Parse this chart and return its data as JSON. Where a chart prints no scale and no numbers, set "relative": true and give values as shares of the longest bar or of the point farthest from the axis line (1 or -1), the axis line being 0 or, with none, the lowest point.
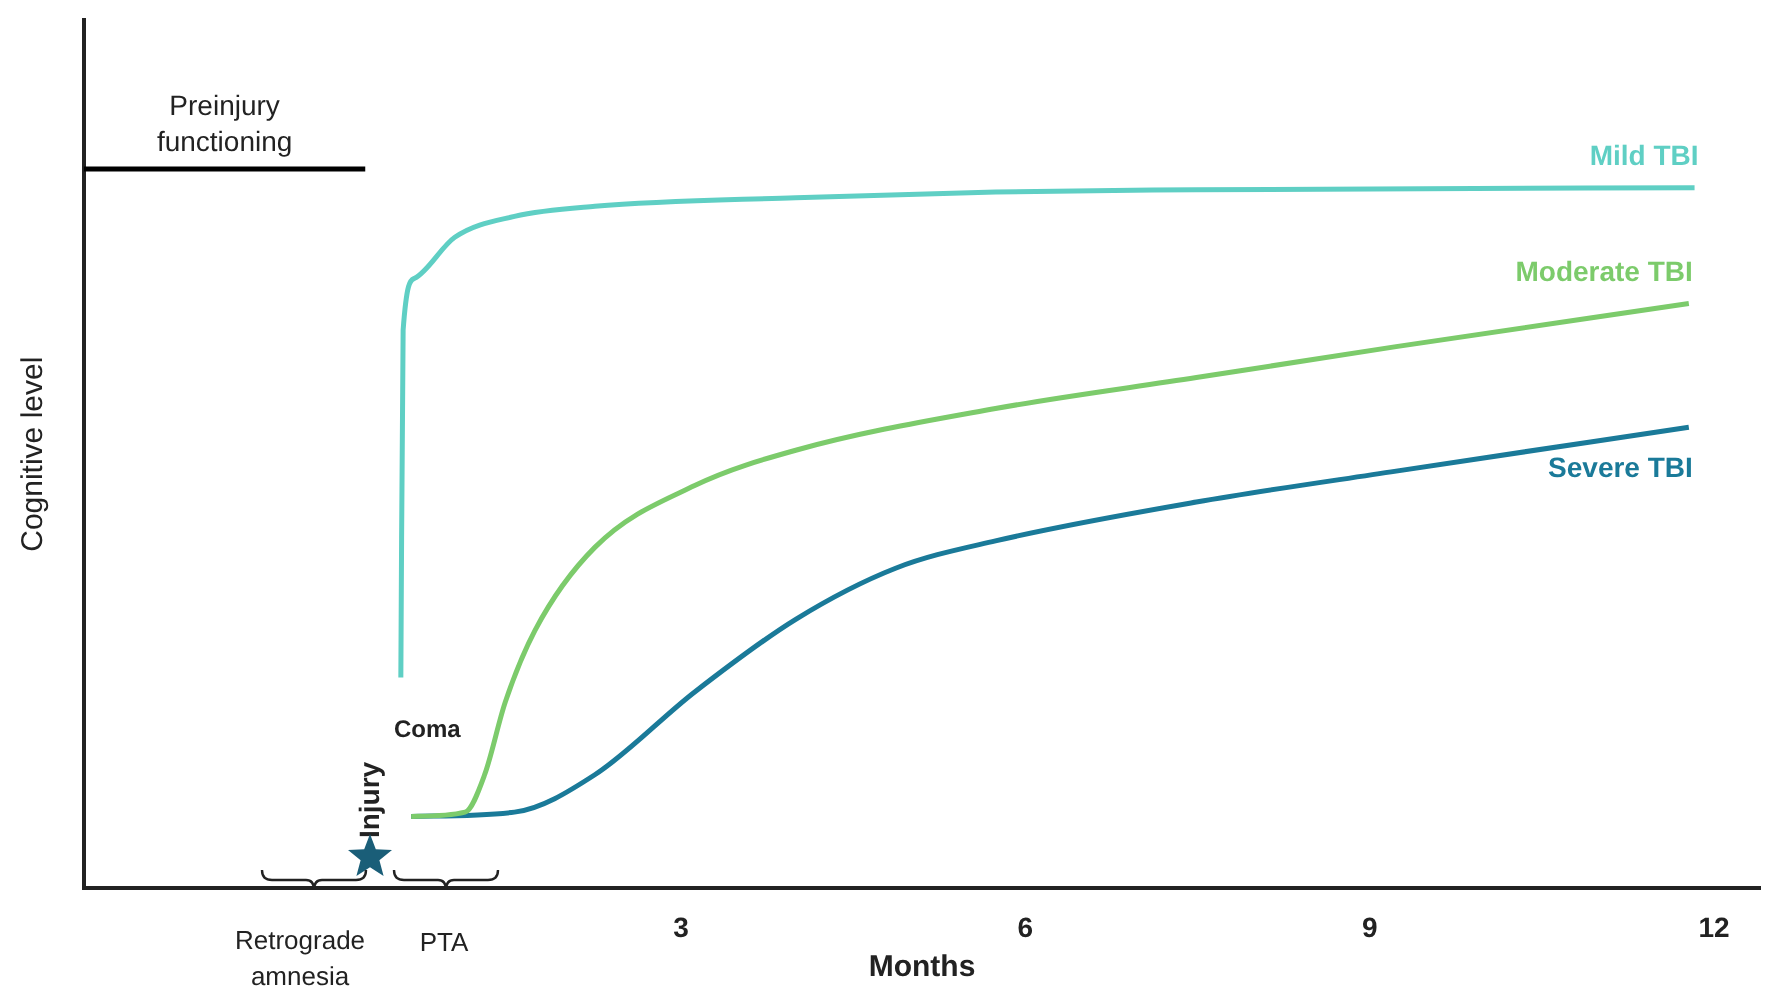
{
  "chart_data": {
    "type": "line",
    "relative": true,
    "xlabel": "Months",
    "ylabel": "Cognitive level",
    "xlim": [
      -2.2,
      12.4
    ],
    "xticks": [
      3,
      6,
      9,
      12
    ],
    "grid": false,
    "legend": false,
    "marker": "none",
    "line_style": "solid",
    "series": [
      {
        "name": "Preinjury functioning",
        "color": "#000000",
        "x": [
          -2.2,
          0.25
        ],
        "values": [
          1,
          1
        ]
      },
      {
        "name": "Mild TBI",
        "color": "#5fcfc4",
        "x": [
          0.56,
          0.58,
          0.68,
          1.03,
          1.55,
          2.25,
          4.0,
          5.74,
          7.49,
          11.83
        ],
        "values": [
          0.293,
          0.776,
          0.848,
          0.905,
          0.934,
          0.948,
          0.96,
          0.968,
          0.971,
          0.974
        ]
      },
      {
        "name": "Moderate TBI",
        "color": "#7ccb6b",
        "x": [
          0.65,
          1.12,
          1.29,
          1.47,
          1.73,
          2.25,
          3.12,
          4.0,
          5.74,
          7.49,
          9.23,
          11.78
        ],
        "values": [
          0.1,
          0.106,
          0.158,
          0.259,
          0.359,
          0.474,
          0.56,
          0.609,
          0.667,
          0.71,
          0.753,
          0.813
        ]
      },
      {
        "name": "Severe TBI",
        "color": "#1a7a99",
        "x": [
          0.65,
          1.55,
          2.25,
          3.12,
          4.0,
          4.87,
          5.74,
          7.49,
          9.23,
          11.78
        ],
        "values": [
          0.1,
          0.106,
          0.158,
          0.273,
          0.374,
          0.445,
          0.483,
          0.537,
          0.58,
          0.641
        ]
      }
    ],
    "annotations": [
      "Injury",
      "Coma",
      "Retrograde amnesia",
      "PTA"
    ]
  }
}
